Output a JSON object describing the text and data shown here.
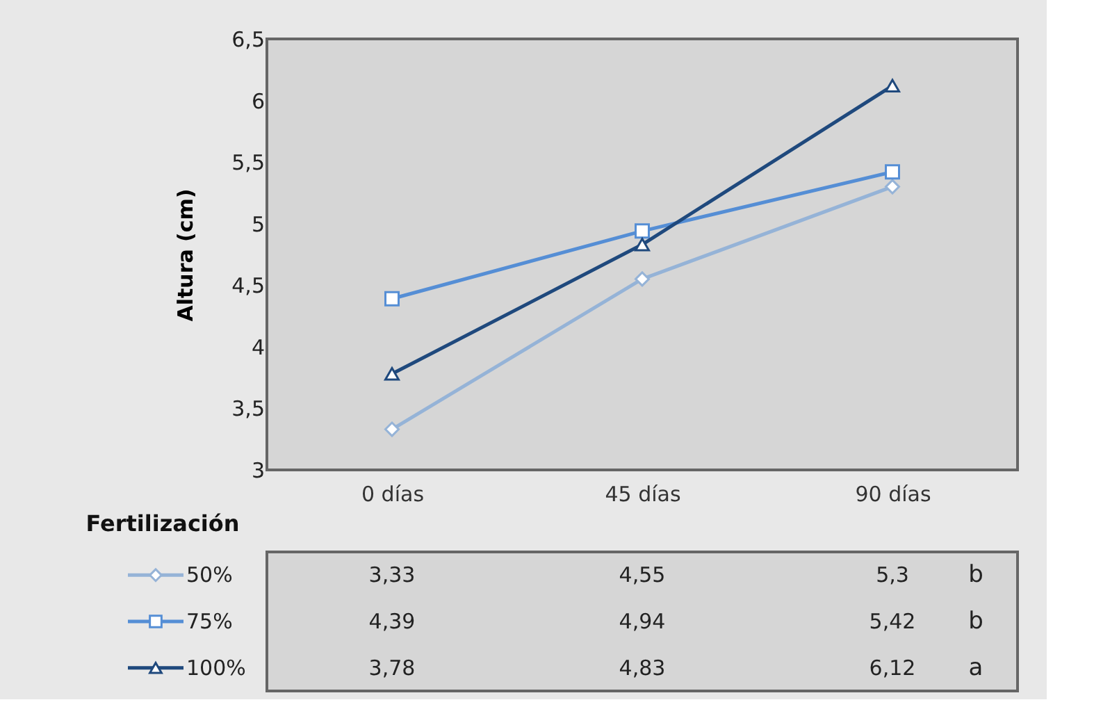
{
  "chart_data": {
    "type": "line",
    "ylabel": "Altura (cm)",
    "legend_title": "Fertilización",
    "categories": [
      "0 días",
      "45 días",
      "90 días"
    ],
    "series": [
      {
        "name": "50%",
        "color": "#95b3d7",
        "marker": "diamond",
        "values": [
          3.33,
          4.55,
          5.3
        ],
        "value_labels": [
          "3,33",
          "4,55",
          "5,3"
        ]
      },
      {
        "name": "75%",
        "color": "#558ed5",
        "marker": "square",
        "values": [
          4.39,
          4.94,
          5.42
        ],
        "value_labels": [
          "4,39",
          "4,94",
          "5,42"
        ]
      },
      {
        "name": "100%",
        "color": "#1f497d",
        "marker": "triangle",
        "values": [
          3.78,
          4.83,
          6.12
        ],
        "value_labels": [
          "3,78",
          "4,83",
          "6,12"
        ]
      }
    ],
    "ylim": [
      3,
      6.5
    ],
    "yticks": [
      3,
      {
        "value": 3.5,
        "label": "3,5"
      },
      4,
      {
        "value": 4.5,
        "label": "4,5"
      },
      5,
      {
        "value": 5.5,
        "label": "5,5"
      },
      6,
      {
        "value": 6.5,
        "label": "6,5"
      }
    ],
    "annotations": [
      "b",
      "b",
      "a"
    ],
    "legend": "bottom",
    "grid": false
  }
}
